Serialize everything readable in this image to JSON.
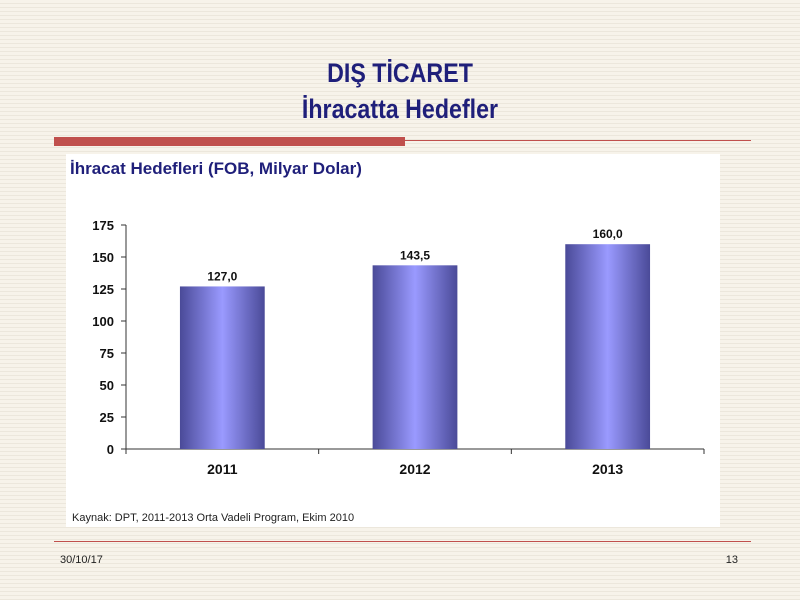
{
  "slide": {
    "title_line1": "DIŞ TİCARET",
    "title_line2": "İhracatta Hedefler",
    "date": "30/10/17",
    "page_number": "13"
  },
  "colors": {
    "title": "#1f1f7a",
    "accent_red": "#c0504d",
    "bar_light": "#9a9aff",
    "bar_dark": "#4a4a98"
  },
  "chart_data": {
    "type": "bar",
    "title": "İhracat Hedefleri (FOB, Milyar Dolar)",
    "categories": [
      "2011",
      "2012",
      "2013"
    ],
    "values": [
      127.0,
      143.5,
      160.0
    ],
    "value_labels": [
      "127,0",
      "143,5",
      "160,0"
    ],
    "yticks": [
      0,
      25,
      50,
      75,
      100,
      125,
      150,
      175
    ],
    "ylim": [
      0,
      175
    ],
    "xlabel": "",
    "ylabel": "",
    "grid": false,
    "legend": "none",
    "source": "Kaynak: DPT, 2011-2013 Orta Vadeli Program, Ekim 2010"
  }
}
